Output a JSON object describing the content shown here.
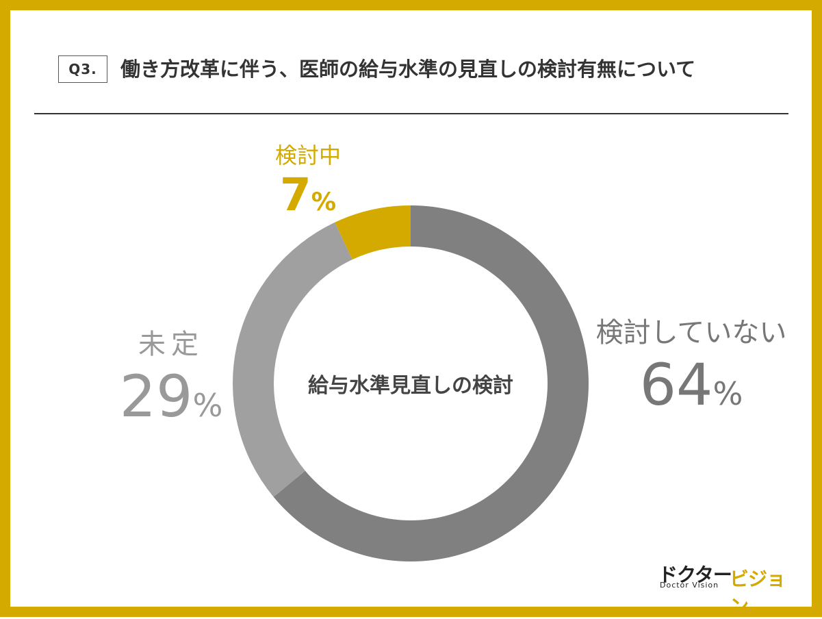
{
  "header": {
    "question_label": "Q3.",
    "title": "働き方改革に伴う、医師の給与水準の見直しの検討有無について"
  },
  "colors": {
    "frame": "#d4a900",
    "accent": "#d4a900",
    "slice_not_considering": "#808080",
    "slice_undecided": "#a0a0a0",
    "slice_considering": "#d4a900"
  },
  "chart_data": {
    "type": "pie",
    "variant": "donut",
    "center_label": "給与水準見直しの検討",
    "slices": [
      {
        "label": "検討中",
        "value": 7,
        "color": "#d4a900"
      },
      {
        "label": "検討していない",
        "value": 64,
        "color": "#808080"
      },
      {
        "label": "未定",
        "value": 29,
        "color": "#a0a0a0"
      }
    ],
    "value_suffix": "%"
  },
  "labels": {
    "considering": {
      "name": "検討中",
      "value": "7"
    },
    "not_considering": {
      "name": "検討していない",
      "value": "64"
    },
    "undecided": {
      "name": "未定",
      "value": "29"
    },
    "percent_symbol": "%"
  },
  "logo": {
    "text_jp_part1": "ドクター",
    "text_jp_part2": "ビジョン",
    "text_en": "Doctor Vision"
  }
}
